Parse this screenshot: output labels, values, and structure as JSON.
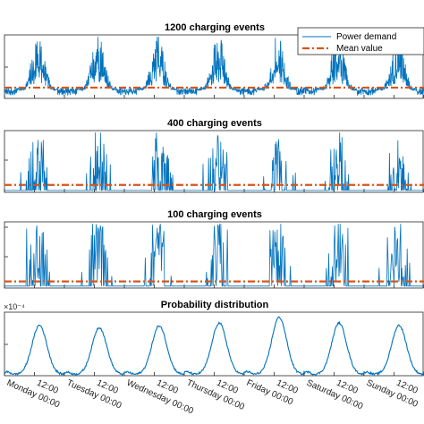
{
  "chart_data": [
    {
      "type": "line",
      "title": "1200 charging events",
      "legend": {
        "placement": "top-right",
        "entries": [
          "Power demand",
          "Mean value"
        ]
      },
      "x_unit": "days from Monday 00:00",
      "xlim": [
        0,
        7
      ],
      "series": [
        {
          "name": "Power demand",
          "color": "#0072BD",
          "values_note": "noisy, daily peaks around 12:00 reaching near top of axis"
        },
        {
          "name": "Mean value",
          "color": "#D95319",
          "style": "dash-dot",
          "relative_level": 0.17
        }
      ]
    },
    {
      "type": "line",
      "title": "400 charging events",
      "xlim": [
        0,
        7
      ],
      "series": [
        {
          "name": "Power demand",
          "color": "#0072BD"
        },
        {
          "name": "Mean value",
          "color": "#D95319",
          "style": "dash-dot",
          "relative_level": 0.12
        }
      ]
    },
    {
      "type": "line",
      "title": "100 charging events",
      "xlim": [
        0,
        7
      ],
      "series": [
        {
          "name": "Power demand",
          "color": "#0072BD"
        },
        {
          "name": "Mean value",
          "color": "#D95319",
          "style": "dash-dot",
          "relative_level": 0.1
        }
      ]
    },
    {
      "type": "line",
      "title": "Probability distribution",
      "y_exponent_label": "×10⁻⁴",
      "xlim": [
        0,
        7
      ],
      "series": [
        {
          "name": "Probability distribution",
          "color": "#0072BD",
          "daily_profile_note": "minimum near 00:00, rising to peak after 12:00 each day",
          "day_peaks_relative": [
            0.86,
            0.82,
            0.85,
            0.9,
            1.0,
            0.9,
            0.86
          ]
        }
      ],
      "x_tick_labels": [
        "Monday 00:00",
        "12:00",
        "Tuesday 00:00",
        "12:00",
        "Wednesday 00:00",
        "12:00",
        "Thursday 00:00",
        "12:00",
        "Friday 00:00",
        "12:00",
        "Saturday 00:00",
        "12:00",
        "Sunday 00:00",
        "12:00"
      ]
    }
  ]
}
